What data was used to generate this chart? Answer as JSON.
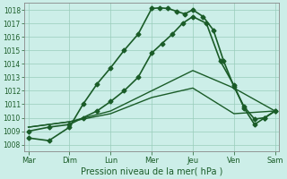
{
  "background_color": "#cceee8",
  "grid_color": "#99ccbb",
  "line_color": "#1a5c28",
  "xlabel": "Pression niveau de la mer( hPa )",
  "xtick_labels": [
    "Mar",
    "Dim",
    "Lun",
    "Mer",
    "Jeu",
    "Ven",
    "Sam"
  ],
  "ylim": [
    1007.5,
    1018.5
  ],
  "yticks": [
    1008,
    1009,
    1010,
    1011,
    1012,
    1013,
    1014,
    1015,
    1016,
    1017,
    1018
  ],
  "lines": [
    {
      "x": [
        0,
        0.5,
        1.0,
        1.33,
        1.67,
        2.0,
        2.33,
        2.67,
        3.0,
        3.2,
        3.4,
        3.6,
        3.8,
        4.0,
        4.25,
        4.5,
        4.75,
        5.0,
        5.25,
        5.5,
        5.75,
        6.0
      ],
      "y": [
        1008.5,
        1008.3,
        1009.3,
        1011.0,
        1012.5,
        1013.7,
        1015.0,
        1016.2,
        1018.1,
        1018.15,
        1018.1,
        1017.9,
        1017.7,
        1018.0,
        1017.5,
        1016.5,
        1014.2,
        1012.3,
        1010.8,
        1009.9,
        1010.0,
        1010.5
      ],
      "marker": "D",
      "ms": 2.5,
      "lw": 1.2
    },
    {
      "x": [
        0,
        0.5,
        1.0,
        1.33,
        1.67,
        2.0,
        2.33,
        2.67,
        3.0,
        3.25,
        3.5,
        3.75,
        4.0,
        4.33,
        4.67,
        5.0,
        5.25,
        5.5,
        5.75,
        6.0
      ],
      "y": [
        1009.0,
        1009.3,
        1009.5,
        1010.0,
        1010.5,
        1011.2,
        1012.0,
        1013.0,
        1014.8,
        1015.5,
        1016.2,
        1017.0,
        1017.5,
        1017.0,
        1014.2,
        1012.4,
        1010.7,
        1009.5,
        1010.0,
        1010.5
      ],
      "marker": "D",
      "ms": 2.5,
      "lw": 1.2
    },
    {
      "x": [
        0,
        1.0,
        2.0,
        3.0,
        4.0,
        5.0,
        6.0
      ],
      "y": [
        1009.3,
        1009.7,
        1010.5,
        1012.0,
        1013.5,
        1012.2,
        1010.5
      ],
      "marker": null,
      "ms": 0,
      "lw": 1.0
    },
    {
      "x": [
        0,
        1.0,
        2.0,
        3.0,
        4.0,
        5.0,
        6.0
      ],
      "y": [
        1009.3,
        1009.7,
        1010.3,
        1011.5,
        1012.2,
        1010.3,
        1010.5
      ],
      "marker": null,
      "ms": 0,
      "lw": 1.0
    }
  ],
  "figsize": [
    3.2,
    2.0
  ],
  "dpi": 100,
  "tick_fontsize": 5.5,
  "xlabel_fontsize": 7.0,
  "xtick_fontsize": 6.0
}
